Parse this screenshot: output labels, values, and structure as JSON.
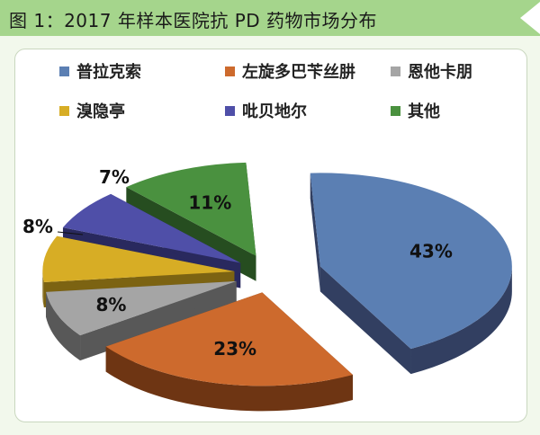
{
  "title": "图 1：2017 年样本医院抗 PD 药物市场分布",
  "chart_data": {
    "type": "pie",
    "title": "图 1：2017 年样本医院抗 PD 药物市场分布",
    "legend_placement": "top",
    "slices": [
      {
        "label": "普拉克索",
        "value": 43,
        "display": "43%",
        "color": "#5b7fb3",
        "side": "#323f61"
      },
      {
        "label": "左旋多巴苄丝肼",
        "value": 23,
        "display": "23%",
        "color": "#cd6a2d",
        "side": "#6e3513"
      },
      {
        "label": "恩他卡朋",
        "value": 8,
        "display": "8%",
        "color": "#a5a5a5",
        "side": "#585858"
      },
      {
        "label": "溴隐亭",
        "value": 8,
        "display": "8%",
        "color": "#d7ad25",
        "side": "#7c6312"
      },
      {
        "label": "吡贝地尔",
        "value": 7,
        "display": "7%",
        "color": "#4f4fa8",
        "side": "#29295e"
      },
      {
        "label": "其他",
        "value": 11,
        "display": "11%",
        "color": "#4a913f",
        "side": "#264d20"
      }
    ]
  }
}
